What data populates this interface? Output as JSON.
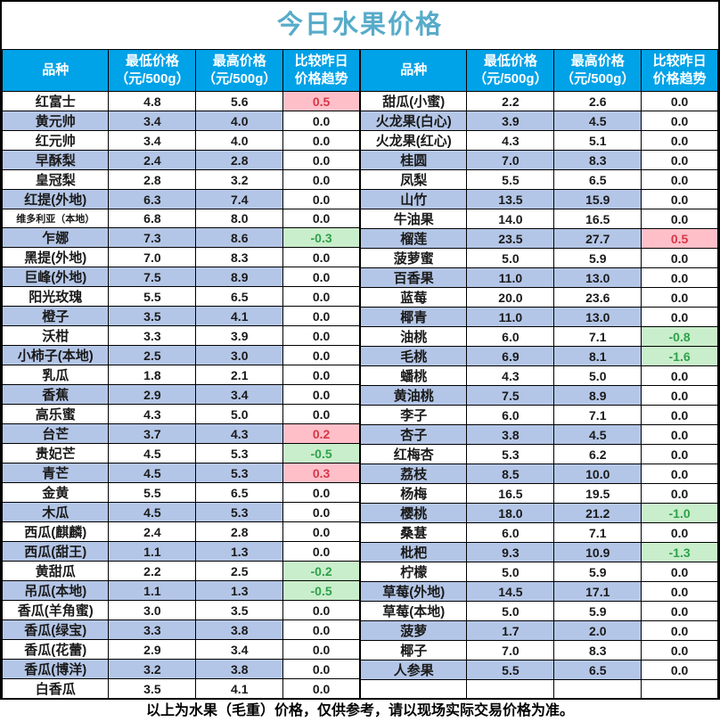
{
  "title": "今日水果价格",
  "footer": "以上为水果（毛重）价格，仅供参考，请以现场实际交易价格为准。",
  "colors": {
    "title_color": "#57ABC9",
    "header_bg": "#00A2E8",
    "row_alt_bg": "#B4C6E7",
    "trend_up_bg": "#FFBFC9",
    "trend_up_text": "#D83748",
    "trend_down_bg": "#C9EECB",
    "trend_down_text": "#2FA14B"
  },
  "header": {
    "variety": "品种",
    "min_line1": "最低价格",
    "min_line2": "（元/500g）",
    "max_line1": "最高价格",
    "max_line2": "（元/500g）",
    "trend_line1": "比较昨日",
    "trend_line2": "价格趋势"
  },
  "left_rows": [
    {
      "name": "红富士",
      "min": "4.8",
      "max": "5.6",
      "trend": "0.5",
      "trend_state": "up"
    },
    {
      "name": "黄元帅",
      "min": "3.4",
      "max": "4.0",
      "trend": "0.0",
      "trend_state": "flat"
    },
    {
      "name": "红元帅",
      "min": "3.4",
      "max": "4.0",
      "trend": "0.0",
      "trend_state": "flat"
    },
    {
      "name": "早酥梨",
      "min": "2.4",
      "max": "2.8",
      "trend": "0.0",
      "trend_state": "flat"
    },
    {
      "name": "皇冠梨",
      "min": "2.8",
      "max": "3.2",
      "trend": "0.0",
      "trend_state": "flat"
    },
    {
      "name": "红提(外地)",
      "min": "6.3",
      "max": "7.4",
      "trend": "0.0",
      "trend_state": "flat"
    },
    {
      "name": "维多利亚（本地）",
      "min": "6.8",
      "max": "8.0",
      "trend": "0.0",
      "trend_state": "flat"
    },
    {
      "name": "乍娜",
      "min": "7.3",
      "max": "8.6",
      "trend": "-0.3",
      "trend_state": "down"
    },
    {
      "name": "黑提(外地)",
      "min": "7.0",
      "max": "8.3",
      "trend": "0.0",
      "trend_state": "flat"
    },
    {
      "name": "巨峰(外地)",
      "min": "7.5",
      "max": "8.9",
      "trend": "0.0",
      "trend_state": "flat"
    },
    {
      "name": "阳光玫瑰",
      "min": "5.5",
      "max": "6.5",
      "trend": "0.0",
      "trend_state": "flat"
    },
    {
      "name": "橙子",
      "min": "3.5",
      "max": "4.1",
      "trend": "0.0",
      "trend_state": "flat"
    },
    {
      "name": "沃柑",
      "min": "3.3",
      "max": "3.9",
      "trend": "0.0",
      "trend_state": "flat"
    },
    {
      "name": "小柿子(本地)",
      "min": "2.5",
      "max": "3.0",
      "trend": "0.0",
      "trend_state": "flat"
    },
    {
      "name": "乳瓜",
      "min": "1.8",
      "max": "2.1",
      "trend": "0.0",
      "trend_state": "flat"
    },
    {
      "name": "香蕉",
      "min": "2.9",
      "max": "3.4",
      "trend": "0.0",
      "trend_state": "flat"
    },
    {
      "name": "高乐蜜",
      "min": "4.3",
      "max": "5.0",
      "trend": "0.0",
      "trend_state": "flat"
    },
    {
      "name": "台芒",
      "min": "3.7",
      "max": "4.3",
      "trend": "0.2",
      "trend_state": "up"
    },
    {
      "name": "贵妃芒",
      "min": "4.5",
      "max": "5.3",
      "trend": "-0.5",
      "trend_state": "down"
    },
    {
      "name": "青芒",
      "min": "4.5",
      "max": "5.3",
      "trend": "0.3",
      "trend_state": "up"
    },
    {
      "name": "金黄",
      "min": "5.5",
      "max": "6.5",
      "trend": "0.0",
      "trend_state": "flat"
    },
    {
      "name": "木瓜",
      "min": "4.5",
      "max": "5.3",
      "trend": "0.0",
      "trend_state": "flat"
    },
    {
      "name": "西瓜(麒麟)",
      "min": "2.4",
      "max": "2.8",
      "trend": "0.0",
      "trend_state": "flat"
    },
    {
      "name": "西瓜(甜王)",
      "min": "1.1",
      "max": "1.3",
      "trend": "0.0",
      "trend_state": "flat"
    },
    {
      "name": "黄甜瓜",
      "min": "2.2",
      "max": "2.5",
      "trend": "-0.2",
      "trend_state": "down"
    },
    {
      "name": "吊瓜(本地)",
      "min": "1.1",
      "max": "1.3",
      "trend": "-0.5",
      "trend_state": "down"
    },
    {
      "name": "香瓜(羊角蜜)",
      "min": "3.0",
      "max": "3.5",
      "trend": "0.0",
      "trend_state": "flat"
    },
    {
      "name": "香瓜(绿宝)",
      "min": "3.3",
      "max": "3.8",
      "trend": "0.0",
      "trend_state": "flat"
    },
    {
      "name": "香瓜(花蕾)",
      "min": "2.9",
      "max": "3.4",
      "trend": "0.0",
      "trend_state": "flat"
    },
    {
      "name": "香瓜(博洋)",
      "min": "3.2",
      "max": "3.8",
      "trend": "0.0",
      "trend_state": "flat"
    },
    {
      "name": "白香瓜",
      "min": "3.5",
      "max": "4.1",
      "trend": "0.0",
      "trend_state": "flat"
    }
  ],
  "right_rows": [
    {
      "name": "甜瓜(小蜜)",
      "min": "2.2",
      "max": "2.6",
      "trend": "0.0",
      "trend_state": "flat"
    },
    {
      "name": "火龙果(白心)",
      "min": "3.9",
      "max": "4.5",
      "trend": "0.0",
      "trend_state": "flat"
    },
    {
      "name": "火龙果(红心)",
      "min": "4.3",
      "max": "5.1",
      "trend": "0.0",
      "trend_state": "flat"
    },
    {
      "name": "桂圆",
      "min": "7.0",
      "max": "8.3",
      "trend": "0.0",
      "trend_state": "flat"
    },
    {
      "name": "凤梨",
      "min": "5.5",
      "max": "6.5",
      "trend": "0.0",
      "trend_state": "flat"
    },
    {
      "name": "山竹",
      "min": "13.5",
      "max": "15.9",
      "trend": "0.0",
      "trend_state": "flat"
    },
    {
      "name": "牛油果",
      "min": "14.0",
      "max": "16.5",
      "trend": "0.0",
      "trend_state": "flat"
    },
    {
      "name": "榴莲",
      "min": "23.5",
      "max": "27.7",
      "trend": "0.5",
      "trend_state": "up"
    },
    {
      "name": "菠萝蜜",
      "min": "5.0",
      "max": "5.9",
      "trend": "0.0",
      "trend_state": "flat"
    },
    {
      "name": "百香果",
      "min": "11.0",
      "max": "13.0",
      "trend": "0.0",
      "trend_state": "flat"
    },
    {
      "name": "蓝莓",
      "min": "20.0",
      "max": "23.6",
      "trend": "0.0",
      "trend_state": "flat"
    },
    {
      "name": "椰青",
      "min": "11.0",
      "max": "13.0",
      "trend": "0.0",
      "trend_state": "flat"
    },
    {
      "name": "油桃",
      "min": "6.0",
      "max": "7.1",
      "trend": "-0.8",
      "trend_state": "down"
    },
    {
      "name": "毛桃",
      "min": "6.9",
      "max": "8.1",
      "trend": "-1.6",
      "trend_state": "down"
    },
    {
      "name": "蟠桃",
      "min": "4.3",
      "max": "5.0",
      "trend": "0.0",
      "trend_state": "flat"
    },
    {
      "name": "黄油桃",
      "min": "7.5",
      "max": "8.9",
      "trend": "0.0",
      "trend_state": "flat"
    },
    {
      "name": "李子",
      "min": "6.0",
      "max": "7.1",
      "trend": "0.0",
      "trend_state": "flat"
    },
    {
      "name": "杏子",
      "min": "3.8",
      "max": "4.5",
      "trend": "0.0",
      "trend_state": "flat"
    },
    {
      "name": "红梅杏",
      "min": "5.3",
      "max": "6.2",
      "trend": "0.0",
      "trend_state": "flat"
    },
    {
      "name": "荔枝",
      "min": "8.5",
      "max": "10.0",
      "trend": "0.0",
      "trend_state": "flat"
    },
    {
      "name": "杨梅",
      "min": "16.5",
      "max": "19.5",
      "trend": "0.0",
      "trend_state": "flat"
    },
    {
      "name": "樱桃",
      "min": "18.0",
      "max": "21.2",
      "trend": "-1.0",
      "trend_state": "down"
    },
    {
      "name": "桑葚",
      "min": "6.0",
      "max": "7.1",
      "trend": "0.0",
      "trend_state": "flat"
    },
    {
      "name": "枇杷",
      "min": "9.3",
      "max": "10.9",
      "trend": "-1.3",
      "trend_state": "down"
    },
    {
      "name": "柠檬",
      "min": "5.0",
      "max": "5.9",
      "trend": "0.0",
      "trend_state": "flat"
    },
    {
      "name": "草莓(外地)",
      "min": "14.5",
      "max": "17.1",
      "trend": "0.0",
      "trend_state": "flat"
    },
    {
      "name": "草莓(本地)",
      "min": "5.0",
      "max": "5.9",
      "trend": "0.0",
      "trend_state": "flat"
    },
    {
      "name": "菠萝",
      "min": "1.7",
      "max": "2.0",
      "trend": "0.0",
      "trend_state": "flat"
    },
    {
      "name": "椰子",
      "min": "7.0",
      "max": "8.3",
      "trend": "0.0",
      "trend_state": "flat"
    },
    {
      "name": "人参果",
      "min": "5.5",
      "max": "6.5",
      "trend": "0.0",
      "trend_state": "flat"
    },
    {
      "name": "",
      "min": "",
      "max": "",
      "trend": "",
      "trend_state": "empty"
    }
  ]
}
